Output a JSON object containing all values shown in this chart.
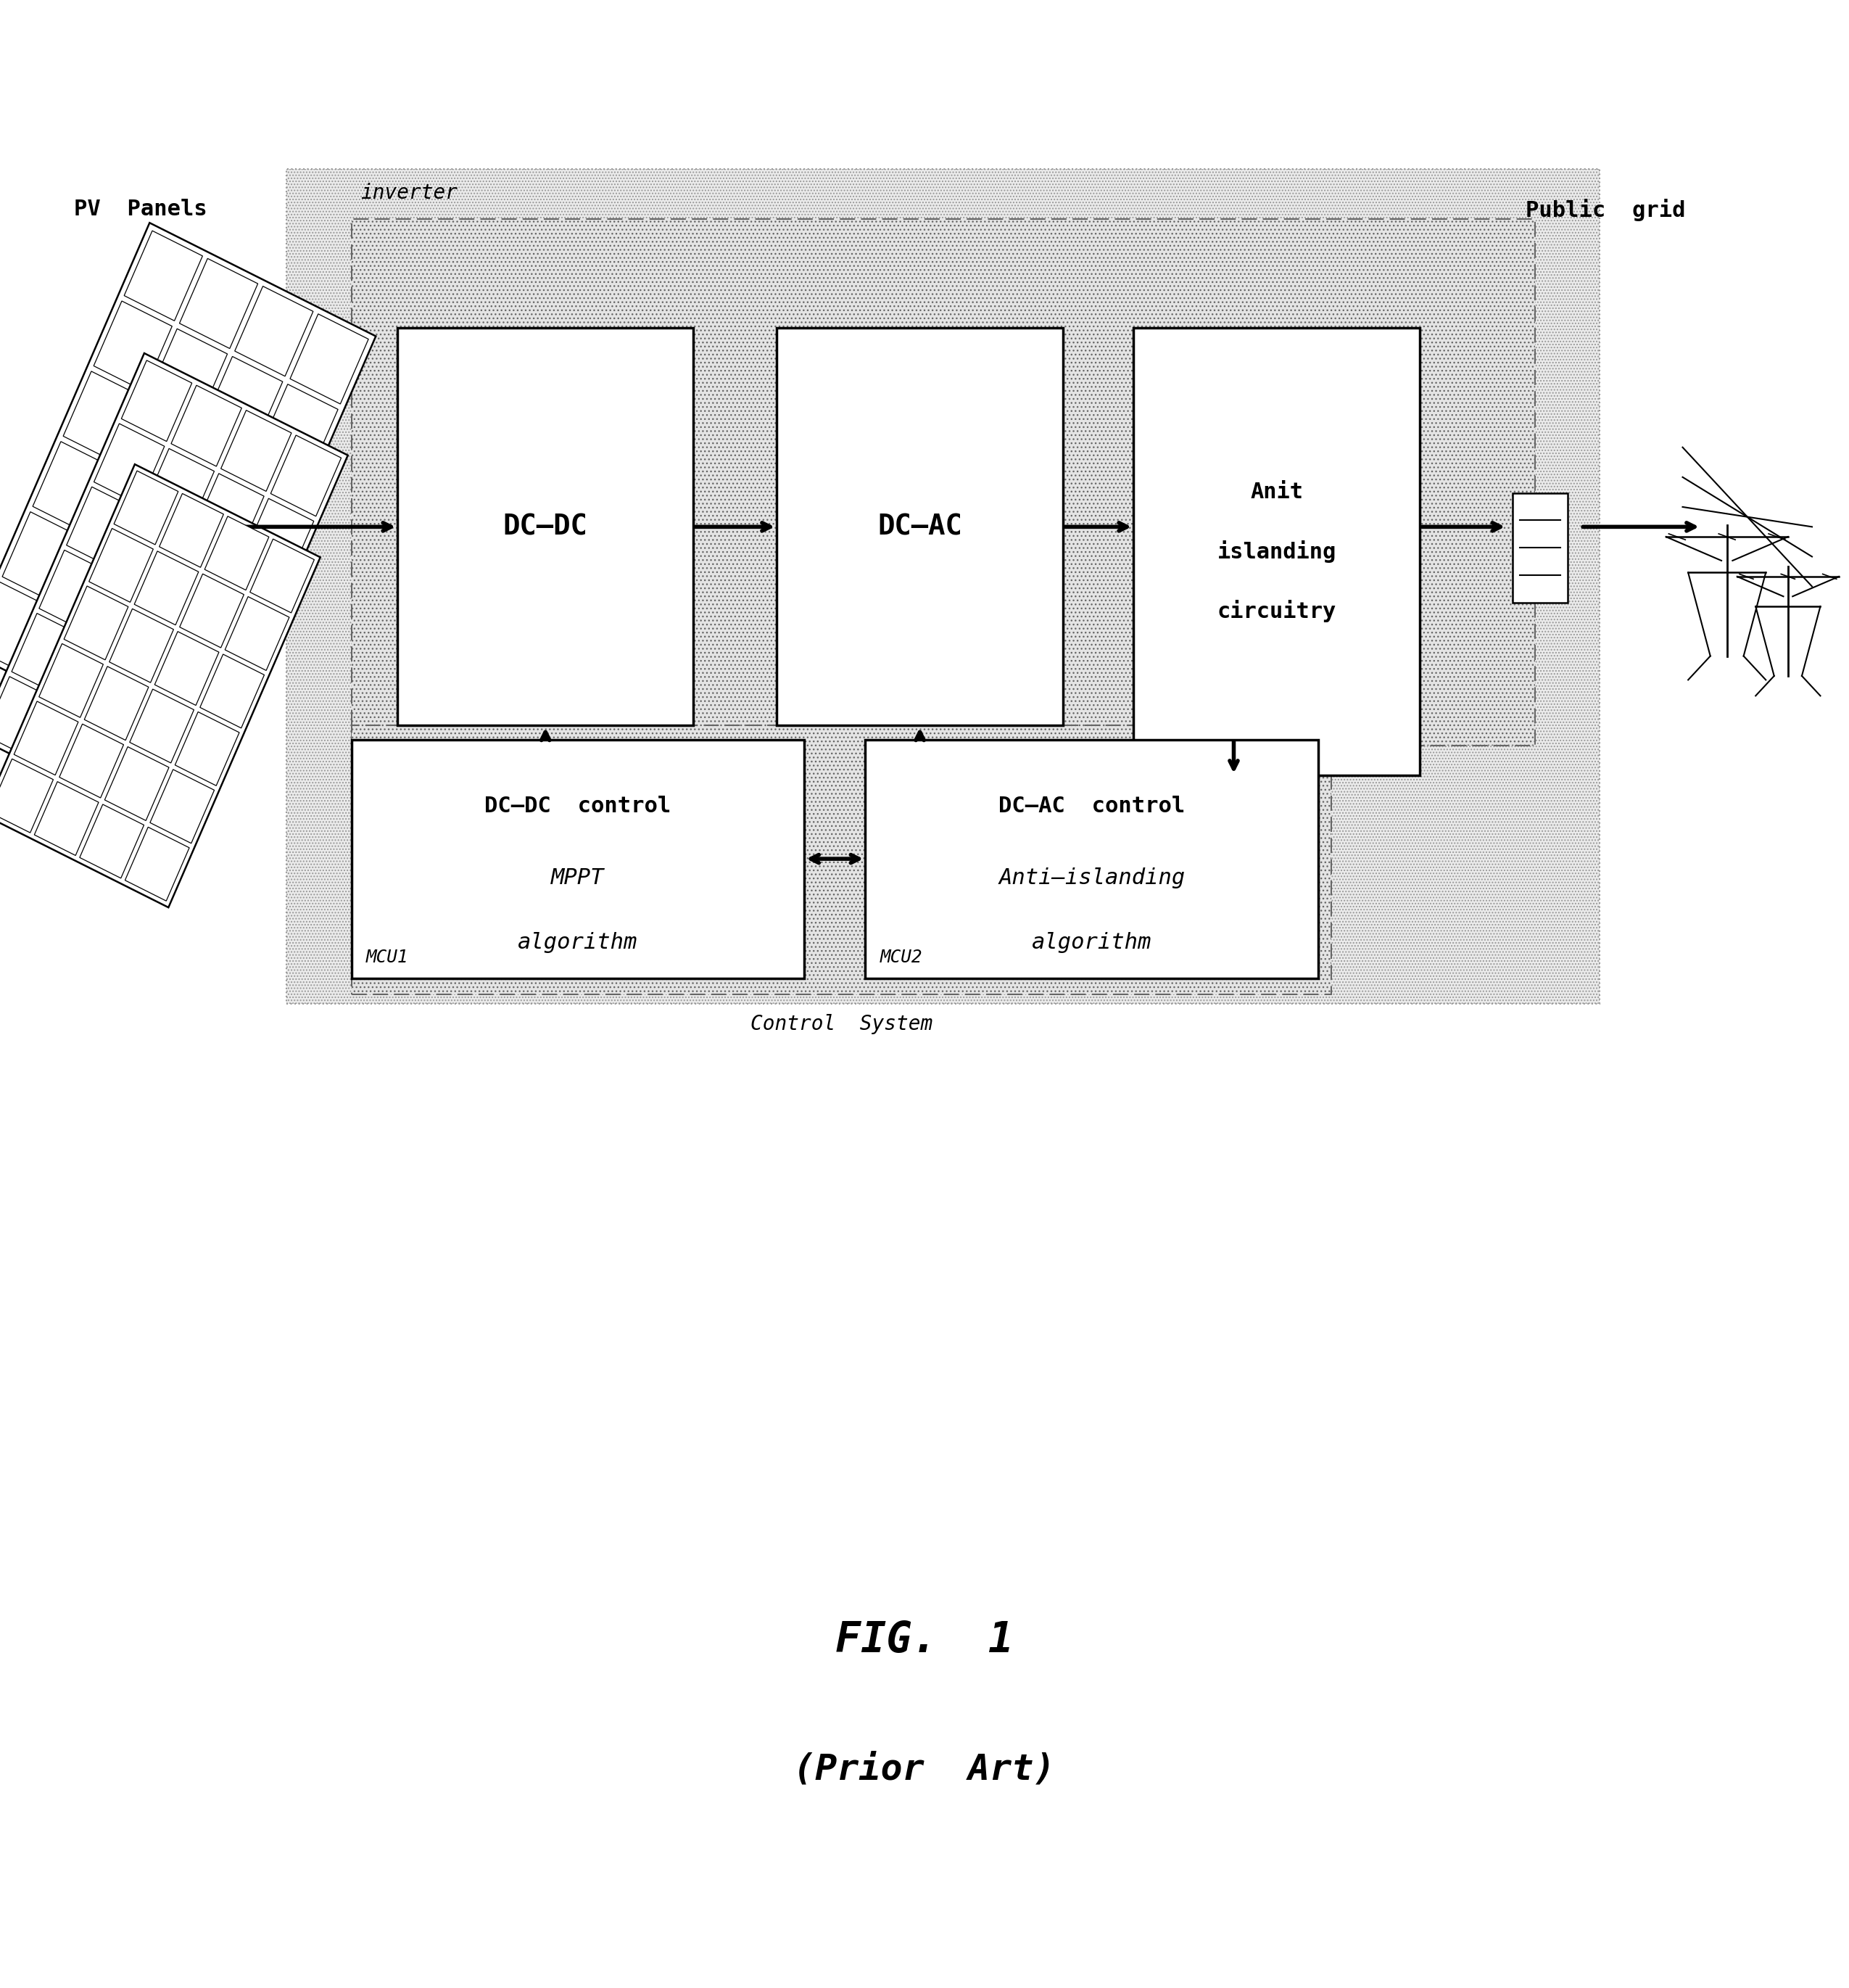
{
  "bg_color": "#ffffff",
  "fig_width": 25.5,
  "fig_height": 27.41,
  "pv_label": "PV  Panels",
  "public_grid_label": "Public  grid",
  "inverter_label": "inverter",
  "control_label": "Control  System",
  "mcu1_label": "MCU1",
  "mcu2_label": "MCU2",
  "fig_title": "FIG.  1",
  "fig_subtitle": "(Prior  Art)"
}
